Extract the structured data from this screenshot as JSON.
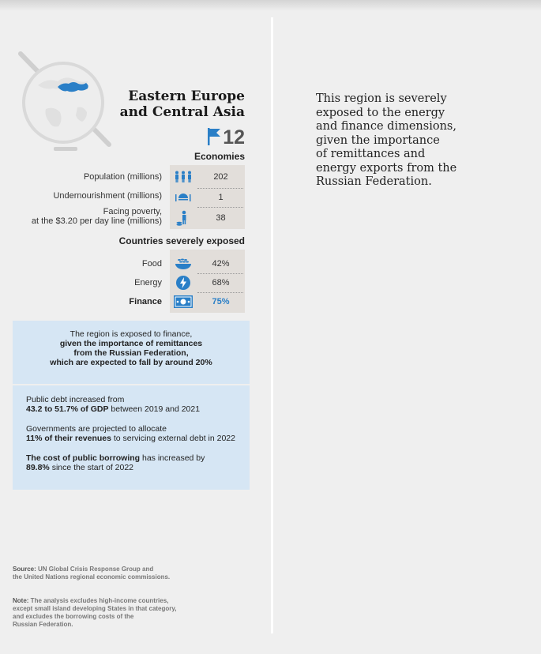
{
  "region": {
    "title_line1": "Eastern Europe",
    "title_line2": "and Central Asia",
    "economies_count": "12",
    "economies_label": "Economies"
  },
  "indicators": [
    {
      "label": "Population (millions)",
      "value": "202",
      "icon": "people-icon"
    },
    {
      "label": "Undernourishment (millions)",
      "value": "1",
      "icon": "bowl-hand-icon"
    },
    {
      "label_line1": "Facing poverty,",
      "label_line2": "at the $3.20 per day line (millions)",
      "value": "38",
      "icon": "person-coins-icon"
    }
  ],
  "exposure": {
    "title": "Countries severely exposed",
    "rows": [
      {
        "label": "Food",
        "value": "42%",
        "icon": "wheat-bowl-icon"
      },
      {
        "label": "Energy",
        "value": "68%",
        "icon": "lightning-icon"
      },
      {
        "label": "Finance",
        "value": "75%",
        "icon": "banknote-icon"
      }
    ]
  },
  "callout": {
    "line1": "The region is exposed to finance,",
    "line2": "given the importance of remittances",
    "line3": "from the Russian Federation,",
    "line4": "which are expected to fall by around 20%"
  },
  "facts": {
    "f1_a": "Public debt increased from",
    "f1_bold": "43.2 to 51.7% of GDP",
    "f1_b": " between 2019 and 2021",
    "f2_a": "Governments are projected to allocate",
    "f2_bold": "11% of their revenues",
    "f2_b": " to servicing external debt in 2022",
    "f3_bold": "The cost of public borrowing",
    "f3_a": " has increased by",
    "f3_bold2": "89.8%",
    "f3_b": " since the start of 2022"
  },
  "source": {
    "lead": "Source:",
    "line1": " UN Global Crisis Response Group and",
    "line2": "the United Nations regional economic commissions."
  },
  "note": {
    "lead": "Note:",
    "line1": " The analysis excludes high-income countries,",
    "line2": "except small island developing States in that category,",
    "line3": "and excludes the borrowing costs of the",
    "line4": "Russian Federation."
  },
  "side_text": {
    "l1": "This region is severely",
    "l2": "exposed to the energy",
    "l3": "and finance dimensions,",
    "l4": "given the importance",
    "l5": "of remittances and",
    "l6": "energy exports from the",
    "l7": "Russian Federation."
  },
  "colors": {
    "accent": "#2a7fc7",
    "callout_bg": "#d6e6f4",
    "stat_bg": "#e2deda"
  }
}
